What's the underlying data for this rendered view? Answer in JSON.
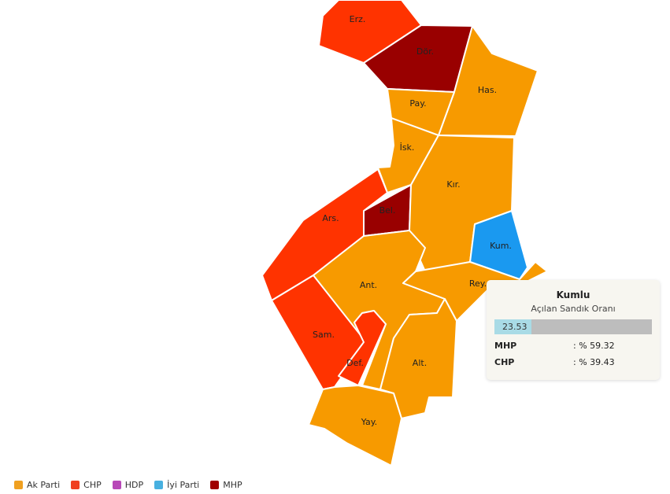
{
  "districts": [
    {
      "label": "Erz.",
      "color": "#ff3300"
    },
    {
      "label": "Dör.",
      "color": "#990000"
    },
    {
      "label": "Has.",
      "color": "#f79a00"
    },
    {
      "label": "Pay.",
      "color": "#f79a00"
    },
    {
      "label": "İsk.",
      "color": "#f79a00"
    },
    {
      "label": "Bel.",
      "color": "#990000"
    },
    {
      "label": "Kır.",
      "color": "#f79a00"
    },
    {
      "label": "Kum.",
      "color": "#1a99f0"
    },
    {
      "label": "Ars.",
      "color": "#ff3300"
    },
    {
      "label": "Ant.",
      "color": "#f79a00"
    },
    {
      "label": "Sam.",
      "color": "#ff3300"
    },
    {
      "label": "Def.",
      "color": "#ff3300"
    },
    {
      "label": "Rey.",
      "color": "#f79a00"
    },
    {
      "label": "Alt.",
      "color": "#f79a00"
    },
    {
      "label": "Yay.",
      "color": "#f79a00"
    }
  ],
  "tooltip": {
    "title": "Kumlu",
    "subtitle": "Açılan Sandık Oranı",
    "progress": 23.53,
    "rows": [
      {
        "party": "MHP",
        "value": ": % 59.32"
      },
      {
        "party": "CHP",
        "value": ": % 39.43"
      }
    ]
  },
  "legend": [
    {
      "name": "Ak Parti",
      "color": "#f0a020"
    },
    {
      "name": "CHP",
      "color": "#f04020"
    },
    {
      "name": "HDP",
      "color": "#b848b8"
    },
    {
      "name": "İyi Parti",
      "color": "#48b0e0"
    },
    {
      "name": "MHP",
      "color": "#a00000"
    }
  ]
}
